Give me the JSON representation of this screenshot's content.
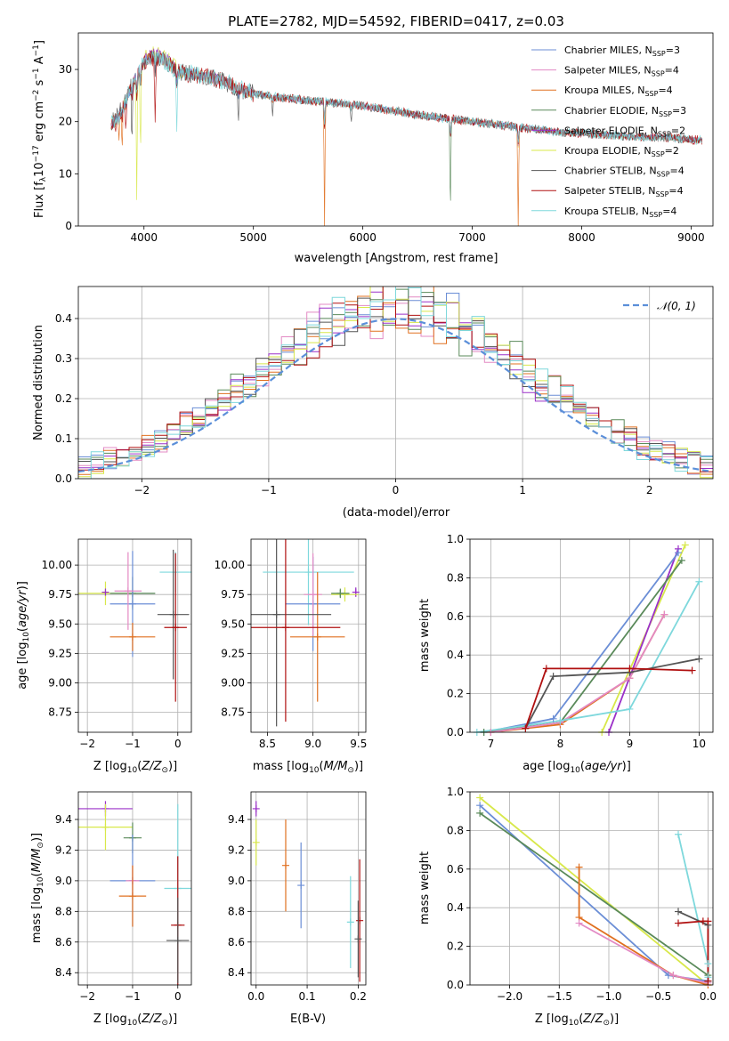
{
  "figure": {
    "title": "PLATE=2782, MJD=54592, FIBERID=0417, z=0.03"
  },
  "colors": {
    "chabrier_miles": "#6b8ed6",
    "salpeter_miles": "#e38ac4",
    "kroupa_miles": "#e07020",
    "chabrier_elodie": "#5a8a5a",
    "salpeter_elodie": "#9b30c8",
    "kroupa_elodie": "#d8e84a",
    "chabrier_stelib": "#555555",
    "salpeter_stelib": "#b01010",
    "kroupa_stelib": "#7ed8dc"
  },
  "legend_models": [
    {
      "key": "chabrier_miles",
      "label": "Chabrier MILES, ",
      "nlabel": "N",
      "nsub": "SSP",
      "nval": "=3"
    },
    {
      "key": "salpeter_miles",
      "label": "Salpeter MILES, ",
      "nlabel": "N",
      "nsub": "SSP",
      "nval": "=4"
    },
    {
      "key": "kroupa_miles",
      "label": "Kroupa MILES, ",
      "nlabel": "N",
      "nsub": "SSP",
      "nval": "=4"
    },
    {
      "key": "chabrier_elodie",
      "label": "Chabrier ELODIE, ",
      "nlabel": "N",
      "nsub": "SSP",
      "nval": "=3"
    },
    {
      "key": "salpeter_elodie",
      "label": "Salpeter ELODIE, ",
      "nlabel": "N",
      "nsub": "SSP",
      "nval": "=2"
    },
    {
      "key": "kroupa_elodie",
      "label": "Kroupa ELODIE, ",
      "nlabel": "N",
      "nsub": "SSP",
      "nval": "=2"
    },
    {
      "key": "chabrier_stelib",
      "label": "Chabrier STELIB, ",
      "nlabel": "N",
      "nsub": "SSP",
      "nval": "=4"
    },
    {
      "key": "salpeter_stelib",
      "label": "Salpeter STELIB, ",
      "nlabel": "N",
      "nsub": "SSP",
      "nval": "=4"
    },
    {
      "key": "kroupa_stelib",
      "label": "Kroupa STELIB, ",
      "nlabel": "N",
      "nsub": "SSP",
      "nval": "=4"
    }
  ],
  "chart_data": [
    {
      "id": "spectrum",
      "type": "line",
      "xlabel": "wavelength [Angstrom, rest frame]",
      "ylabel": "Flux [f",
      "xlim": [
        3400,
        9200
      ],
      "ylim": [
        0,
        37
      ],
      "xticks": [
        4000,
        5000,
        6000,
        7000,
        8000,
        9000
      ],
      "yticks": [
        0,
        10,
        20,
        30
      ],
      "legend_position": "top-right",
      "continuum": [
        [
          3700,
          19.5
        ],
        [
          3800,
          22.5
        ],
        [
          3900,
          27.5
        ],
        [
          4000,
          31.5
        ],
        [
          4100,
          32.5
        ],
        [
          4200,
          31.5
        ],
        [
          4300,
          29.5
        ],
        [
          4500,
          29
        ],
        [
          4700,
          28
        ],
        [
          4900,
          26
        ],
        [
          5100,
          25
        ],
        [
          5300,
          24.5
        ],
        [
          5500,
          24
        ],
        [
          5800,
          23.5
        ],
        [
          6000,
          23
        ],
        [
          6300,
          22
        ],
        [
          6600,
          21
        ],
        [
          7000,
          20
        ],
        [
          7400,
          19
        ],
        [
          7800,
          18
        ],
        [
          8200,
          17.5
        ],
        [
          8600,
          17
        ],
        [
          8800,
          17
        ],
        [
          9000,
          16.5
        ],
        [
          9100,
          16.5
        ]
      ],
      "absorption_features": [
        {
          "x": 3735,
          "depth": 4,
          "key": "salpeter_stelib"
        },
        {
          "x": 3770,
          "depth": 6,
          "key": "kroupa_miles"
        },
        {
          "x": 3800,
          "depth": 9,
          "key": "kroupa_miles"
        },
        {
          "x": 3835,
          "depth": 7,
          "key": "salpeter_stelib"
        },
        {
          "x": 3890,
          "depth": 12,
          "key": "chabrier_stelib"
        },
        {
          "x": 3934,
          "depth": 24,
          "key": "kroupa_elodie"
        },
        {
          "x": 3968,
          "depth": 18,
          "key": "kroupa_elodie"
        },
        {
          "x": 4102,
          "depth": 12,
          "key": "salpeter_stelib"
        },
        {
          "x": 4300,
          "depth": 12,
          "key": "kroupa_stelib"
        },
        {
          "x": 4861,
          "depth": 8,
          "key": "chabrier_stelib"
        },
        {
          "x": 5175,
          "depth": 5,
          "key": "chabrier_stelib"
        },
        {
          "x": 5650,
          "depth": 24,
          "key": "kroupa_miles"
        },
        {
          "x": 5893,
          "depth": 4,
          "key": "chabrier_stelib"
        },
        {
          "x": 6800,
          "depth": 20,
          "key": "chabrier_elodie"
        },
        {
          "x": 7420,
          "depth": 19,
          "key": "kroupa_miles"
        }
      ]
    },
    {
      "id": "residual_histogram",
      "type": "line",
      "xlabel": "(data-model)/error",
      "ylabel": "Normed distribution",
      "xlim": [
        -2.5,
        2.5
      ],
      "ylim": [
        0,
        0.48
      ],
      "xticks": [
        -2,
        -1,
        0,
        1,
        2
      ],
      "yticks": [
        0.0,
        0.1,
        0.2,
        0.3,
        0.4
      ],
      "bin_width": 0.1,
      "legend": "𝒩(0, 1)",
      "legend_position": "top-right",
      "gaussian": {
        "mean": 0,
        "sigma": 1
      }
    },
    {
      "id": "age_vs_Z",
      "type": "scatter",
      "xlabel": "Z [log",
      "ylabel": "age  [log",
      "xlim": [
        -2.2,
        0.3
      ],
      "ylim": [
        8.58,
        10.22
      ],
      "xticks": [
        -2,
        -1,
        0
      ],
      "yticks": [
        8.75,
        9.0,
        9.25,
        9.5,
        9.75,
        10.0
      ],
      "points": [
        {
          "key": "kroupa_elodie",
          "x": -1.6,
          "y": 9.76,
          "xerr": 0.6,
          "yerr": 0.1
        },
        {
          "key": "chabrier_elodie",
          "x": -1.0,
          "y": 9.76,
          "xerr": 0.5,
          "yerr": 0.14
        },
        {
          "key": "salpeter_elodie",
          "x": -1.6,
          "y": 9.77,
          "xerr": 0.02,
          "yerr": 0.0
        },
        {
          "key": "chabrier_miles",
          "x": -1.0,
          "y": 9.67,
          "xerr": 0.5,
          "yerr": 0.45
        },
        {
          "key": "salpeter_miles",
          "x": -1.1,
          "y": 9.78,
          "xerr": 0.3,
          "yerr": 0.33
        },
        {
          "key": "kroupa_miles",
          "x": -1.0,
          "y": 9.39,
          "xerr": 0.5,
          "yerr": 0.12
        },
        {
          "key": "kroupa_stelib",
          "x": -0.05,
          "y": 9.94,
          "xerr": 0.35,
          "yerr": 0.17
        },
        {
          "key": "chabrier_stelib",
          "x": -0.1,
          "y": 9.58,
          "xerr": 0.35,
          "yerr": 0.55
        },
        {
          "key": "salpeter_stelib",
          "x": -0.05,
          "y": 9.47,
          "xerr": 0.25,
          "yerr": 0.63
        }
      ]
    },
    {
      "id": "age_vs_mass",
      "type": "scatter",
      "xlabel": "mass [log",
      "ylabel": "",
      "xlim": [
        8.32,
        9.58
      ],
      "ylim": [
        8.58,
        10.22
      ],
      "xticks": [
        8.5,
        9.0,
        9.5
      ],
      "yticks": [
        8.75,
        9.0,
        9.25,
        9.5,
        9.75,
        10.0
      ],
      "points": [
        {
          "key": "salpeter_elodie",
          "x": 9.47,
          "y": 9.77,
          "xerr": 0.03,
          "yerr": 0.04
        },
        {
          "key": "kroupa_elodie",
          "x": 9.35,
          "y": 9.75,
          "xerr": 0.15,
          "yerr": 0.06
        },
        {
          "key": "chabrier_elodie",
          "x": 9.3,
          "y": 9.76,
          "xerr": 0.1,
          "yerr": 0.04
        },
        {
          "key": "kroupa_stelib",
          "x": 8.95,
          "y": 9.94,
          "xerr": 0.5,
          "yerr": 0.45
        },
        {
          "key": "chabrier_miles",
          "x": 9.0,
          "y": 9.67,
          "xerr": 0.3,
          "yerr": 0.4
        },
        {
          "key": "salpeter_miles",
          "x": 9.0,
          "y": 9.75,
          "xerr": 0.1,
          "yerr": 0.35
        },
        {
          "key": "kroupa_miles",
          "x": 9.05,
          "y": 9.39,
          "xerr": 0.3,
          "yerr": 0.55
        },
        {
          "key": "chabrier_stelib",
          "x": 8.6,
          "y": 9.58,
          "xerr": 0.6,
          "yerr": 0.95
        },
        {
          "key": "salpeter_stelib",
          "x": 8.7,
          "y": 9.47,
          "xerr": 0.6,
          "yerr": 0.8
        }
      ]
    },
    {
      "id": "mass_weight_vs_age",
      "type": "line",
      "xlabel": "age  [log",
      "ylabel": "mass weight",
      "xlim": [
        6.7,
        10.2
      ],
      "ylim": [
        0,
        1.0
      ],
      "xticks": [
        7,
        8,
        9,
        10
      ],
      "yticks": [
        0.0,
        0.2,
        0.4,
        0.6,
        0.8,
        1.0
      ],
      "series": [
        {
          "key": "kroupa_elodie",
          "x": [
            8.6,
            9.8
          ],
          "y": [
            0.0,
            0.97
          ]
        },
        {
          "key": "salpeter_elodie",
          "x": [
            8.7,
            9.7
          ],
          "y": [
            0.0,
            0.95
          ]
        },
        {
          "key": "chabrier_miles",
          "x": [
            6.9,
            7.9,
            9.7
          ],
          "y": [
            0.0,
            0.07,
            0.93
          ]
        },
        {
          "key": "chabrier_elodie",
          "x": [
            6.9,
            8.0,
            9.75
          ],
          "y": [
            0.0,
            0.05,
            0.89
          ]
        },
        {
          "key": "kroupa_miles",
          "x": [
            7.0,
            8.0,
            9.0,
            9.5
          ],
          "y": [
            0.0,
            0.04,
            0.28,
            0.61
          ]
        },
        {
          "key": "salpeter_miles",
          "x": [
            7.0,
            8.0,
            9.0,
            9.5
          ],
          "y": [
            0.0,
            0.05,
            0.28,
            0.61
          ]
        },
        {
          "key": "kroupa_stelib",
          "x": [
            6.8,
            8.0,
            9.0,
            10.0
          ],
          "y": [
            0.0,
            0.06,
            0.12,
            0.78
          ]
        },
        {
          "key": "chabrier_stelib",
          "x": [
            7.5,
            7.9,
            9.0,
            10.0
          ],
          "y": [
            0.02,
            0.29,
            0.31,
            0.38
          ]
        },
        {
          "key": "salpeter_stelib",
          "x": [
            7.5,
            7.8,
            9.0,
            9.9
          ],
          "y": [
            0.02,
            0.33,
            0.33,
            0.32
          ]
        }
      ]
    },
    {
      "id": "mass_vs_Z",
      "type": "scatter",
      "xlabel": "Z [log",
      "ylabel": "mass [log",
      "xlim": [
        -2.2,
        0.3
      ],
      "ylim": [
        8.32,
        9.58
      ],
      "xticks": [
        -2,
        -1,
        0
      ],
      "yticks": [
        8.4,
        8.6,
        8.8,
        9.0,
        9.2,
        9.4
      ],
      "points": [
        {
          "key": "salpeter_elodie",
          "x": -1.6,
          "y": 9.47,
          "xerr": 0.6,
          "yerr": 0.05
        },
        {
          "key": "kroupa_elodie",
          "x": -1.6,
          "y": 9.35,
          "xerr": 0.6,
          "yerr": 0.15
        },
        {
          "key": "chabrier_elodie",
          "x": -1.0,
          "y": 9.28,
          "xerr": 0.2,
          "yerr": 0.1
        },
        {
          "key": "chabrier_miles",
          "x": -1.0,
          "y": 9.0,
          "xerr": 0.5,
          "yerr": 0.3
        },
        {
          "key": "salpeter_miles",
          "x": -1.0,
          "y": 9.0,
          "xerr": 0.15,
          "yerr": 0.1
        },
        {
          "key": "kroupa_miles",
          "x": -1.0,
          "y": 8.9,
          "xerr": 0.3,
          "yerr": 0.2
        },
        {
          "key": "kroupa_stelib",
          "x": 0.0,
          "y": 8.95,
          "xerr": 0.3,
          "yerr": 0.55
        },
        {
          "key": "salpeter_stelib",
          "x": 0.0,
          "y": 8.71,
          "xerr": 0.15,
          "yerr": 0.45
        },
        {
          "key": "chabrier_stelib",
          "x": 0.0,
          "y": 8.61,
          "xerr": 0.25,
          "yerr": 0.28
        }
      ]
    },
    {
      "id": "mass_vs_ebv",
      "type": "scatter",
      "xlabel": "E(B-V)",
      "ylabel": "",
      "xlim": [
        -0.01,
        0.215
      ],
      "ylim": [
        8.32,
        9.58
      ],
      "xticks": [
        0.0,
        0.1,
        0.2
      ],
      "yticks": [
        8.4,
        8.6,
        8.8,
        9.0,
        9.2,
        9.4
      ],
      "points": [
        {
          "key": "salpeter_elodie",
          "x": 0.0,
          "y": 9.47,
          "xerr": 0.0,
          "yerr": 0.05
        },
        {
          "key": "kroupa_elodie",
          "x": 0.0,
          "y": 9.25,
          "xerr": 0.0,
          "yerr": 0.15
        },
        {
          "key": "kroupa_miles",
          "x": 0.058,
          "y": 9.1,
          "xerr": 0.0,
          "yerr": 0.3
        },
        {
          "key": "chabrier_miles",
          "x": 0.088,
          "y": 8.97,
          "xerr": 0.0,
          "yerr": 0.28
        },
        {
          "key": "kroupa_stelib",
          "x": 0.185,
          "y": 8.73,
          "xerr": 0.0,
          "yerr": 0.3
        },
        {
          "key": "salpeter_stelib",
          "x": 0.203,
          "y": 8.74,
          "xerr": 0.0,
          "yerr": 0.4
        },
        {
          "key": "chabrier_stelib",
          "x": 0.2,
          "y": 8.62,
          "xerr": 0.0,
          "yerr": 0.25
        }
      ]
    },
    {
      "id": "mass_weight_vs_Z",
      "type": "line",
      "xlabel": "Z [log",
      "ylabel": "mass weight",
      "xlim": [
        -2.4,
        0.05
      ],
      "ylim": [
        0,
        1.0
      ],
      "xticks": [
        -2.0,
        -1.5,
        -1.0,
        -0.5,
        0.0
      ],
      "yticks": [
        0.0,
        0.2,
        0.4,
        0.6,
        0.8,
        1.0
      ],
      "series": [
        {
          "key": "kroupa_elodie",
          "x": [
            -2.3,
            0.0
          ],
          "y": [
            0.97,
            0.0
          ]
        },
        {
          "key": "chabrier_miles",
          "x": [
            -2.3,
            -0.4,
            0.0
          ],
          "y": [
            0.93,
            0.05,
            0.02
          ]
        },
        {
          "key": "chabrier_elodie",
          "x": [
            -2.3,
            0.0
          ],
          "y": [
            0.89,
            0.05
          ]
        },
        {
          "key": "kroupa_miles",
          "x": [
            -1.3,
            -1.3,
            -0.35,
            0.0
          ],
          "y": [
            0.61,
            0.35,
            0.05,
            0.0
          ]
        },
        {
          "key": "salpeter_miles",
          "x": [
            -1.3,
            -0.35,
            0.0
          ],
          "y": [
            0.32,
            0.05,
            0.01
          ]
        },
        {
          "key": "kroupa_stelib",
          "x": [
            -0.3,
            0.0,
            0.0
          ],
          "y": [
            0.78,
            0.11,
            0.04
          ]
        },
        {
          "key": "chabrier_stelib",
          "x": [
            -0.3,
            0.0,
            0.0
          ],
          "y": [
            0.38,
            0.31,
            0.02
          ]
        },
        {
          "key": "salpeter_stelib",
          "x": [
            -0.3,
            -0.05,
            0.0,
            0.0
          ],
          "y": [
            0.32,
            0.33,
            0.33,
            0.02
          ]
        }
      ]
    }
  ]
}
